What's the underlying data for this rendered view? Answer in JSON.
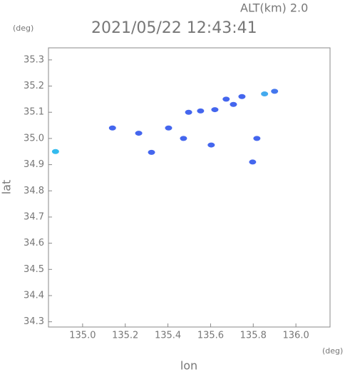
{
  "chart_data": {
    "type": "scatter",
    "title": "2021/05/22 12:43:41",
    "altitude_label": "ALT(km)  2.0",
    "y_unit": "(deg)",
    "x_unit": "(deg)",
    "xlabel": "lon",
    "ylabel": "lat",
    "x": [
      134.873,
      135.14,
      135.263,
      135.323,
      135.403,
      135.473,
      135.497,
      135.553,
      135.62,
      135.603,
      135.673,
      135.707,
      135.747,
      135.817,
      135.853,
      135.9,
      135.797
    ],
    "values": [
      34.95,
      35.04,
      35.02,
      34.947,
      35.04,
      35.0,
      35.1,
      35.105,
      35.11,
      34.975,
      35.15,
      35.13,
      35.16,
      35.0,
      35.17,
      35.18,
      34.91
    ],
    "colors": [
      "#33bbee",
      "#4466ee",
      "#4466ee",
      "#4466ee",
      "#4466ee",
      "#4466ee",
      "#4466ee",
      "#4466ee",
      "#4466ee",
      "#4466ee",
      "#4466ee",
      "#4466ee",
      "#4466ee",
      "#4466ee",
      "#44aaee",
      "#4477ee",
      "#4466ee"
    ],
    "xlim": [
      134.84,
      136.16
    ],
    "ylim": [
      34.28,
      35.346
    ],
    "xticks": [
      {
        "value": 135,
        "label": "135.0"
      },
      135.2,
      135.4,
      135.6,
      135.8,
      {
        "value": 136,
        "label": "136.0"
      }
    ],
    "yticks": [
      34.3,
      34.4,
      34.5,
      34.6,
      34.7,
      34.8,
      34.9,
      {
        "value": 35,
        "label": "35.0"
      },
      35.1,
      35.2,
      35.3
    ]
  }
}
